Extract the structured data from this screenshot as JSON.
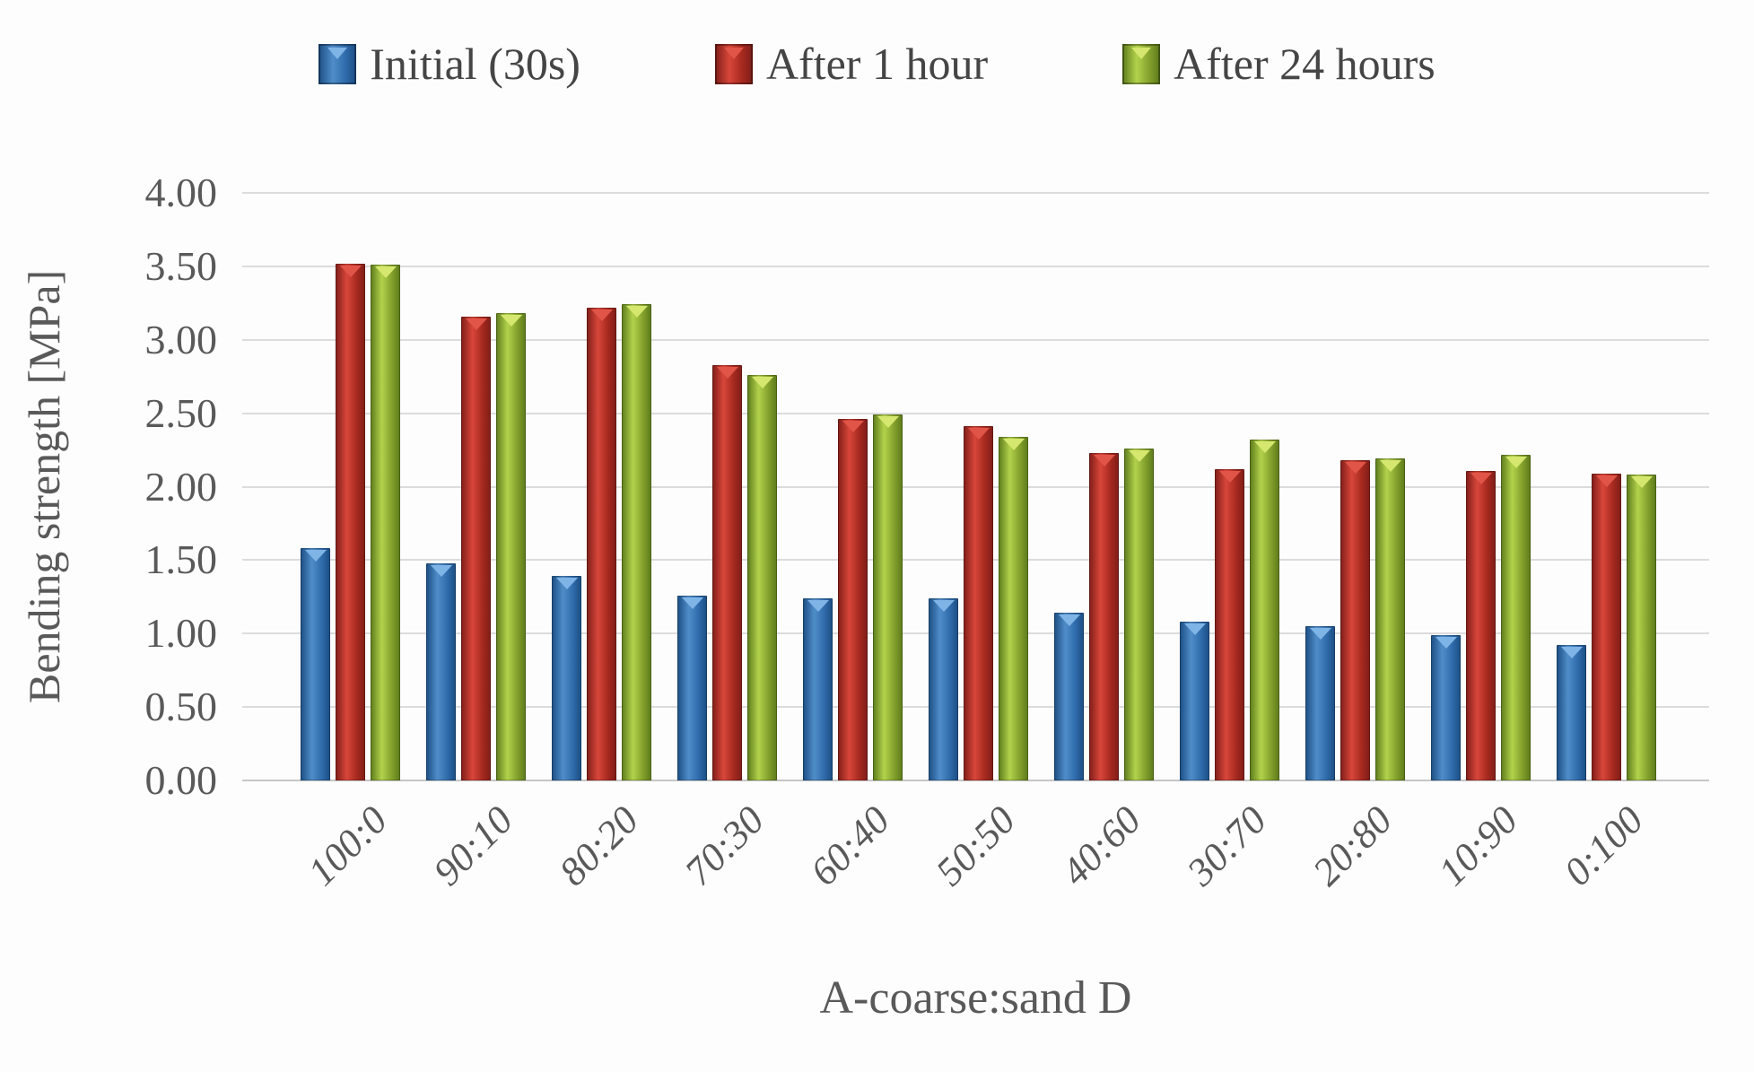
{
  "chart_data": {
    "type": "bar",
    "title": "",
    "categories": [
      "100:0",
      "90:10",
      "80:20",
      "70:30",
      "60:40",
      "50:50",
      "40:60",
      "30:70",
      "20:80",
      "10:90",
      "0:100"
    ],
    "series": [
      {
        "name": "Initial (30s)",
        "color": "#2f6bab",
        "gradient": [
          "#1c4d82",
          "#4f8dc9",
          "#2f6bab"
        ],
        "notch_color": "#7fb4e6",
        "values": [
          1.58,
          1.48,
          1.39,
          1.26,
          1.24,
          1.24,
          1.14,
          1.08,
          1.05,
          0.99,
          0.92
        ]
      },
      {
        "name": "After 1 hour",
        "color": "#a6291f",
        "gradient": [
          "#7e1d18",
          "#d8463a",
          "#a6291f"
        ],
        "notch_color": "#e05547",
        "values": [
          3.52,
          3.16,
          3.22,
          2.83,
          2.46,
          2.41,
          2.23,
          2.12,
          2.18,
          2.11,
          2.09
        ]
      },
      {
        "name": "After 24 hours",
        "color": "#83a02c",
        "gradient": [
          "#5c7a1b",
          "#b2d24c",
          "#83a02c"
        ],
        "notch_color": "#d5e76e",
        "values": [
          3.51,
          3.18,
          3.24,
          2.76,
          2.49,
          2.34,
          2.26,
          2.32,
          2.19,
          2.22,
          2.08
        ]
      }
    ],
    "xlabel": "A-coarse:sand D",
    "ylabel": "Bending strength [MPa]",
    "ylim": [
      0,
      4.0
    ],
    "ytick_step": 0.5,
    "ytick_labels": [
      "4.00",
      "3.50",
      "3.00",
      "2.50",
      "2.00",
      "1.50",
      "1.00",
      "0.50",
      "0.00"
    ],
    "grid": true,
    "legend_position": "top"
  }
}
